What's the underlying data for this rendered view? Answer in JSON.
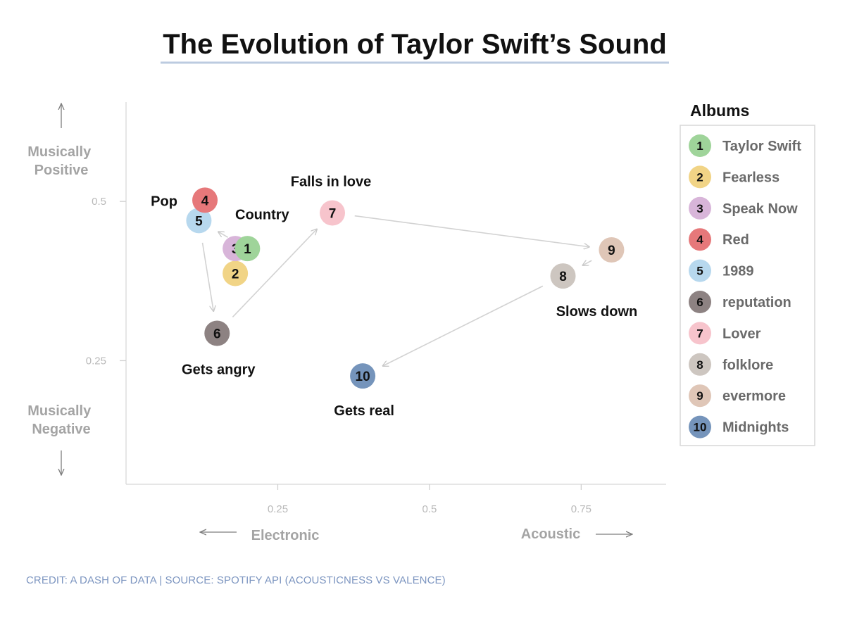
{
  "chart_data": {
    "type": "scatter",
    "title": "The Evolution of Taylor Swift’s Sound",
    "xaxis": {
      "left_label": "Electronic",
      "right_label": "Acoustic",
      "ticks": [
        0.25,
        0.5,
        0.75
      ],
      "range": [
        0.0,
        0.89
      ]
    },
    "yaxis": {
      "top_label": "Musically Positive",
      "bottom_label": "Musically Negative",
      "ticks": [
        0.25,
        0.5
      ],
      "range": [
        0.056,
        0.656
      ]
    },
    "legend": {
      "title": "Albums",
      "position": "right"
    },
    "points": [
      {
        "n": "1",
        "album": "Taylor Swift",
        "x": 0.2,
        "y": 0.426,
        "color": "#9fd49a"
      },
      {
        "n": "2",
        "album": "Fearless",
        "x": 0.18,
        "y": 0.387,
        "color": "#f1d486"
      },
      {
        "n": "3",
        "album": "Speak Now",
        "x": 0.18,
        "y": 0.426,
        "color": "#d8b5d9"
      },
      {
        "n": "4",
        "album": "Red",
        "x": 0.13,
        "y": 0.502,
        "color": "#e6787a"
      },
      {
        "n": "5",
        "album": "1989",
        "x": 0.12,
        "y": 0.47,
        "color": "#b7d8ee"
      },
      {
        "n": "6",
        "album": "reputation",
        "x": 0.15,
        "y": 0.293,
        "color": "#8d8282"
      },
      {
        "n": "7",
        "album": "Lover",
        "x": 0.34,
        "y": 0.482,
        "color": "#f7c4cc"
      },
      {
        "n": "8",
        "album": "folklore",
        "x": 0.72,
        "y": 0.383,
        "color": "#cdc6c0"
      },
      {
        "n": "9",
        "album": "evermore",
        "x": 0.8,
        "y": 0.424,
        "color": "#dfc6b7"
      },
      {
        "n": "10",
        "album": "Midnights",
        "x": 0.39,
        "y": 0.226,
        "color": "#7594bb"
      }
    ],
    "annotations": [
      "Pop",
      "Country",
      "Falls in love",
      "Gets angry",
      "Slows down",
      "Gets real"
    ],
    "path_order": [
      "1",
      "5",
      "6",
      "7",
      "9",
      "8",
      "10"
    ]
  },
  "credit": "CREDIT: A DASH OF DATA | SOURCE: SPOTIFY API (ACOUSTICNESS VS VALENCE)"
}
